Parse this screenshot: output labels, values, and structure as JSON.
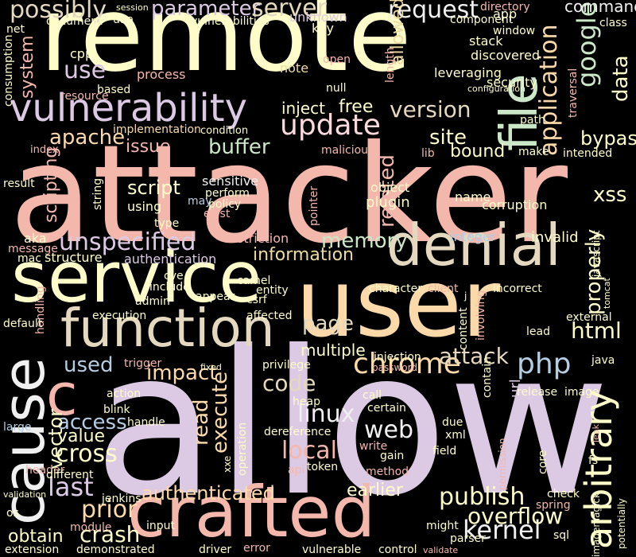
{
  "palette": {
    "background": "#000000",
    "cream": "#fefdc9",
    "pink": "#f4b7ac",
    "lavender": "#dcc9e4",
    "peach": "#fcd9a8",
    "mint": "#cce6c8",
    "blue": "#b5cde3",
    "beige": "#e4d8bf",
    "rose": "#fbdade",
    "grey": "#f0f0f0",
    "gold": "#ecdca0"
  },
  "words": [
    {
      "id": "allow",
      "text": "allow",
      "color": "lavender"
    },
    {
      "id": "attacker",
      "text": "attacker",
      "color": "pink"
    },
    {
      "id": "remote",
      "text": "remote",
      "color": "cream"
    },
    {
      "id": "user",
      "text": "user",
      "color": "peach"
    },
    {
      "id": "service",
      "text": "service",
      "color": "cream"
    },
    {
      "id": "crafted",
      "text": "crafted",
      "color": "pink"
    },
    {
      "id": "cause",
      "text": "cause",
      "color": "grey"
    },
    {
      "id": "denial",
      "text": "denial",
      "color": "beige"
    },
    {
      "id": "function",
      "text": "function",
      "color": "beige"
    },
    {
      "id": "file",
      "text": "file",
      "color": "mint"
    },
    {
      "id": "vulnerability",
      "text": "vulnerability",
      "color": "lavender"
    },
    {
      "id": "arbitrary",
      "text": "arbitrary",
      "color": "cream"
    },
    {
      "id": "c",
      "text": "c",
      "color": "pink"
    },
    {
      "id": "update",
      "text": "update",
      "color": "rose"
    },
    {
      "id": "chrome",
      "text": "chrome",
      "color": "peach"
    },
    {
      "id": "google",
      "text": "google",
      "color": "mint"
    },
    {
      "id": "php",
      "text": "php",
      "color": "blue"
    },
    {
      "id": "kernel",
      "text": "kernel",
      "color": "grey"
    },
    {
      "id": "linux",
      "text": "linux",
      "color": "grey"
    },
    {
      "id": "publish",
      "text": "publish",
      "color": "cream"
    },
    {
      "id": "unspecified",
      "text": "unspecified",
      "color": "lavender"
    },
    {
      "id": "application",
      "text": "application",
      "color": "peach"
    },
    {
      "id": "possibly",
      "text": "possibly",
      "color": "beige"
    },
    {
      "id": "parameter",
      "text": "parameter",
      "color": "lavender"
    },
    {
      "id": "server",
      "text": "server",
      "color": "beige"
    },
    {
      "id": "request",
      "text": "request",
      "color": "grey"
    },
    {
      "id": "data",
      "text": "data",
      "color": "cream"
    },
    {
      "id": "local",
      "text": "local",
      "color": "pink"
    },
    {
      "id": "version",
      "text": "version",
      "color": "beige"
    },
    {
      "id": "page",
      "text": "page",
      "color": "beige"
    },
    {
      "id": "code",
      "text": "code",
      "color": "beige"
    },
    {
      "id": "attack",
      "text": "attack",
      "color": "beige"
    },
    {
      "id": "site",
      "text": "site",
      "color": "cream"
    },
    {
      "id": "apache",
      "text": "apache",
      "color": "peach"
    },
    {
      "id": "impact",
      "text": "impact",
      "color": "peach"
    },
    {
      "id": "last",
      "text": "last",
      "color": "lavender"
    },
    {
      "id": "prior",
      "text": "prior",
      "color": "peach"
    },
    {
      "id": "cross",
      "text": "cross",
      "color": "cream"
    },
    {
      "id": "access",
      "text": "access",
      "color": "blue"
    },
    {
      "id": "crash",
      "text": "crash",
      "color": "cream"
    },
    {
      "id": "web",
      "text": "web",
      "color": "grey"
    },
    {
      "id": "overflow",
      "text": "overflow",
      "color": "cream"
    },
    {
      "id": "html",
      "text": "html",
      "color": "cream"
    },
    {
      "id": "properly",
      "text": "properly",
      "color": "cream"
    },
    {
      "id": "xss",
      "text": "xss",
      "color": "cream"
    },
    {
      "id": "memory",
      "text": "memory",
      "color": "mint"
    },
    {
      "id": "buffer",
      "text": "buffer",
      "color": "mint"
    },
    {
      "id": "information",
      "text": "information",
      "color": "gold"
    },
    {
      "id": "authenticated",
      "text": "authenticated",
      "color": "peach"
    },
    {
      "id": "read",
      "text": "read",
      "color": "peach"
    },
    {
      "id": "execute",
      "text": "execute",
      "color": "peach"
    },
    {
      "id": "related",
      "text": "related",
      "color": "pink"
    },
    {
      "id": "use",
      "text": "use",
      "color": "lavender"
    },
    {
      "id": "used",
      "text": "used",
      "color": "blue"
    },
    {
      "id": "vector",
      "text": "vector",
      "color": "cream"
    },
    {
      "id": "bypass",
      "text": "bypass",
      "color": "cream"
    },
    {
      "id": "allowed",
      "text": "allowed",
      "color": "gold"
    },
    {
      "id": "command",
      "text": "command",
      "color": "grey"
    },
    {
      "id": "system",
      "text": "system",
      "color": "pink"
    },
    {
      "id": "scripting",
      "text": "scripting",
      "color": "pink"
    },
    {
      "id": "script",
      "text": "script",
      "color": "cream"
    },
    {
      "id": "issue",
      "text": "issue",
      "color": "pink"
    },
    {
      "id": "earlier",
      "text": "earlier",
      "color": "cream"
    },
    {
      "id": "multiple",
      "text": "multiple",
      "color": "cream"
    },
    {
      "id": "value",
      "text": "value",
      "color": "cream"
    },
    {
      "id": "obtain",
      "text": "obtain",
      "color": "cream"
    },
    {
      "id": "inject",
      "text": "inject",
      "color": "cream"
    },
    {
      "id": "free",
      "text": "free",
      "color": "cream"
    },
    {
      "id": "bound",
      "text": "bound",
      "color": "cream"
    },
    {
      "id": "sensitive",
      "text": "sensitive",
      "color": "grey"
    },
    {
      "id": "url",
      "text": "url",
      "color": "lavender"
    },
    {
      "id": "corruption",
      "text": "corruption",
      "color": "cream"
    },
    {
      "id": "name",
      "text": "name",
      "color": "cream"
    },
    {
      "id": "plugin",
      "text": "plugin",
      "color": "cream"
    },
    {
      "id": "object",
      "text": "object",
      "color": "cream"
    },
    {
      "id": "invalid",
      "text": "invalid",
      "color": "cream"
    },
    {
      "id": "integer",
      "text": "integer",
      "color": "blue"
    },
    {
      "id": "restriction",
      "text": "restriction",
      "color": "pink"
    },
    {
      "id": "structure",
      "text": "structure",
      "color": "cream"
    },
    {
      "id": "authentication",
      "text": "authentication",
      "color": "lavender"
    },
    {
      "id": "aka",
      "text": "aka",
      "color": "cream"
    },
    {
      "id": "message",
      "text": "message",
      "color": "pink"
    },
    {
      "id": "mac",
      "text": "mac",
      "color": "cream"
    },
    {
      "id": "resource",
      "text": "resource",
      "color": "pink"
    },
    {
      "id": "based",
      "text": "based",
      "color": "cream"
    },
    {
      "id": "process",
      "text": "process",
      "color": "pink"
    },
    {
      "id": "note",
      "text": "note",
      "color": "gold"
    },
    {
      "id": "open",
      "text": "open",
      "color": "pink"
    },
    {
      "id": "null",
      "text": "null",
      "color": "cream"
    },
    {
      "id": "length",
      "text": "length",
      "color": "pink"
    },
    {
      "id": "leveraging",
      "text": "leveraging",
      "color": "cream"
    },
    {
      "id": "security",
      "text": "security",
      "color": "cream"
    },
    {
      "id": "traversal",
      "text": "traversal",
      "color": "pink"
    },
    {
      "id": "path",
      "text": "path",
      "color": "cream"
    },
    {
      "id": "make",
      "text": "make",
      "color": "cream"
    },
    {
      "id": "intended",
      "text": "intended",
      "color": "cream"
    },
    {
      "id": "lib",
      "text": "lib",
      "color": "pink"
    },
    {
      "id": "malicious",
      "text": "malicious",
      "color": "pink"
    },
    {
      "id": "condition",
      "text": "condition",
      "color": "cream"
    },
    {
      "id": "implementation",
      "text": "implementation",
      "color": "peach"
    },
    {
      "id": "discovered",
      "text": "discovered",
      "color": "cream"
    },
    {
      "id": "stack",
      "text": "stack",
      "color": "cream"
    },
    {
      "id": "window",
      "text": "window",
      "color": "cream"
    },
    {
      "id": "directory",
      "text": "directory",
      "color": "pink"
    },
    {
      "id": "app",
      "text": "app",
      "color": "cream"
    },
    {
      "id": "class",
      "text": "class",
      "color": "cream"
    },
    {
      "id": "component",
      "text": "component",
      "color": "cream"
    },
    {
      "id": "configuration",
      "text": "configuration",
      "color": "cream"
    },
    {
      "id": "key",
      "text": "key",
      "color": "cream"
    },
    {
      "id": "unknown",
      "text": "unknown",
      "color": "lavender"
    },
    {
      "id": "vulnerabilities",
      "text": "vulnerabilities",
      "color": "cream"
    },
    {
      "id": "session",
      "text": "session",
      "color": "cream"
    },
    {
      "id": "uaa",
      "text": "uaa",
      "color": "cream"
    },
    {
      "id": "document",
      "text": "document",
      "color": "cream"
    },
    {
      "id": "net",
      "text": "net",
      "color": "cream"
    },
    {
      "id": "cpp",
      "text": "cpp",
      "color": "cream"
    },
    {
      "id": "consumption",
      "text": "consumption",
      "color": "cream"
    },
    {
      "id": "index",
      "text": "index",
      "color": "pink"
    },
    {
      "id": "result",
      "text": "result",
      "color": "cream"
    },
    {
      "id": "string",
      "text": "string",
      "color": "cream"
    },
    {
      "id": "using",
      "text": "using",
      "color": "cream"
    },
    {
      "id": "may",
      "text": "may",
      "color": "blue"
    },
    {
      "id": "perform",
      "text": "perform",
      "color": "cream"
    },
    {
      "id": "policy",
      "text": "policy",
      "color": "cream"
    },
    {
      "id": "type",
      "text": "type",
      "color": "cream"
    },
    {
      "id": "exist",
      "text": "exist",
      "color": "pink"
    },
    {
      "id": "pointer",
      "text": "pointer",
      "color": "pink"
    },
    {
      "id": "cve",
      "text": "cve",
      "color": "cream"
    },
    {
      "id": "include",
      "text": "include",
      "color": "cream"
    },
    {
      "id": "admin",
      "text": "admin",
      "color": "cream"
    },
    {
      "id": "appear",
      "text": "appear",
      "color": "cream"
    },
    {
      "id": "camel",
      "text": "camel",
      "color": "cream"
    },
    {
      "id": "entity",
      "text": "entity",
      "color": "cream"
    },
    {
      "id": "csrf",
      "text": "csrf",
      "color": "cream"
    },
    {
      "id": "character",
      "text": "character",
      "color": "cream"
    },
    {
      "id": "client",
      "text": "client",
      "color": "pink"
    },
    {
      "id": "incorrect",
      "text": "incorrect",
      "color": "cream"
    },
    {
      "id": "j",
      "text": "j",
      "color": "cream"
    },
    {
      "id": "javascript",
      "text": "javascript",
      "color": "cream"
    },
    {
      "id": "tomcat",
      "text": "tomcat",
      "color": "cream"
    },
    {
      "id": "external",
      "text": "external",
      "color": "cream"
    },
    {
      "id": "lead",
      "text": "lead",
      "color": "cream"
    },
    {
      "id": "involving",
      "text": "involving",
      "color": "pink"
    },
    {
      "id": "content",
      "text": "content",
      "color": "cream"
    },
    {
      "id": "default",
      "text": "default",
      "color": "cream"
    },
    {
      "id": "handling",
      "text": "handling",
      "color": "pink"
    },
    {
      "id": "execution",
      "text": "execution",
      "color": "cream"
    },
    {
      "id": "affected",
      "text": "affected",
      "color": "cream"
    },
    {
      "id": "injection",
      "text": "injection",
      "color": "cream"
    },
    {
      "id": "password",
      "text": "password",
      "color": "pink"
    },
    {
      "id": "privilege",
      "text": "privilege",
      "color": "cream"
    },
    {
      "id": "trigger",
      "text": "trigger",
      "color": "pink"
    },
    {
      "id": "fixed",
      "text": "fixed",
      "color": "cream"
    },
    {
      "id": "action",
      "text": "action",
      "color": "cream"
    },
    {
      "id": "blink",
      "text": "blink",
      "color": "cream"
    },
    {
      "id": "handle",
      "text": "handle",
      "color": "cream"
    },
    {
      "id": "large",
      "text": "large",
      "color": "blue"
    },
    {
      "id": "header",
      "text": "header",
      "color": "pink"
    },
    {
      "id": "different",
      "text": "different",
      "color": "cream"
    },
    {
      "id": "validation",
      "text": "validation",
      "color": "cream"
    },
    {
      "id": "jenkins",
      "text": "jenkins",
      "color": "cream"
    },
    {
      "id": "os",
      "text": "os",
      "color": "cream"
    },
    {
      "id": "module",
      "text": "module",
      "color": "pink"
    },
    {
      "id": "extension",
      "text": "extension",
      "color": "cream"
    },
    {
      "id": "demonstrated",
      "text": "demonstrated",
      "color": "cream"
    },
    {
      "id": "input",
      "text": "input",
      "color": "cream"
    },
    {
      "id": "driver",
      "text": "driver",
      "color": "cream"
    },
    {
      "id": "error",
      "text": "error",
      "color": "pink"
    },
    {
      "id": "vulnerable",
      "text": "vulnerable",
      "color": "cream"
    },
    {
      "id": "control",
      "text": "control",
      "color": "cream"
    },
    {
      "id": "validate",
      "text": "validate",
      "color": "pink"
    },
    {
      "id": "parser",
      "text": "parser",
      "color": "cream"
    },
    {
      "id": "might",
      "text": "might",
      "color": "cream"
    },
    {
      "id": "sql",
      "text": "sql",
      "color": "cream"
    },
    {
      "id": "imagemagick",
      "text": "imagemagick",
      "color": "cream"
    },
    {
      "id": "potentially",
      "text": "potentially",
      "color": "cream"
    },
    {
      "id": "fs",
      "text": "fs",
      "color": "cream"
    },
    {
      "id": "leak",
      "text": "leak",
      "color": "pink"
    },
    {
      "id": "spring",
      "text": "spring",
      "color": "pink"
    },
    {
      "id": "check",
      "text": "check",
      "color": "cream"
    },
    {
      "id": "core",
      "text": "core",
      "color": "cream"
    },
    {
      "id": "permission",
      "text": "permission",
      "color": "pink"
    },
    {
      "id": "method",
      "text": "method",
      "color": "pink"
    },
    {
      "id": "gain",
      "text": "gain",
      "color": "cream"
    },
    {
      "id": "write",
      "text": "write",
      "color": "pink"
    },
    {
      "id": "field",
      "text": "field",
      "color": "cream"
    },
    {
      "id": "xml",
      "text": "xml",
      "color": "cream"
    },
    {
      "id": "due",
      "text": "due",
      "color": "cream"
    },
    {
      "id": "contain",
      "text": "contain",
      "color": "cream"
    },
    {
      "id": "release",
      "text": "release",
      "color": "cream"
    },
    {
      "id": "image",
      "text": "image",
      "color": "cream"
    },
    {
      "id": "java",
      "text": "java",
      "color": "cream"
    },
    {
      "id": "certain",
      "text": "certain",
      "color": "cream"
    },
    {
      "id": "call",
      "text": "call",
      "color": "cream"
    },
    {
      "id": "heap",
      "text": "heap",
      "color": "cream"
    },
    {
      "id": "operation",
      "text": "operation",
      "color": "cream"
    },
    {
      "id": "dereference",
      "text": "dereference",
      "color": "cream"
    },
    {
      "id": "xxe",
      "text": "xxe",
      "color": "cream"
    },
    {
      "id": "api",
      "text": "api",
      "color": "pink"
    },
    {
      "id": "token",
      "text": "token",
      "color": "cream"
    }
  ]
}
